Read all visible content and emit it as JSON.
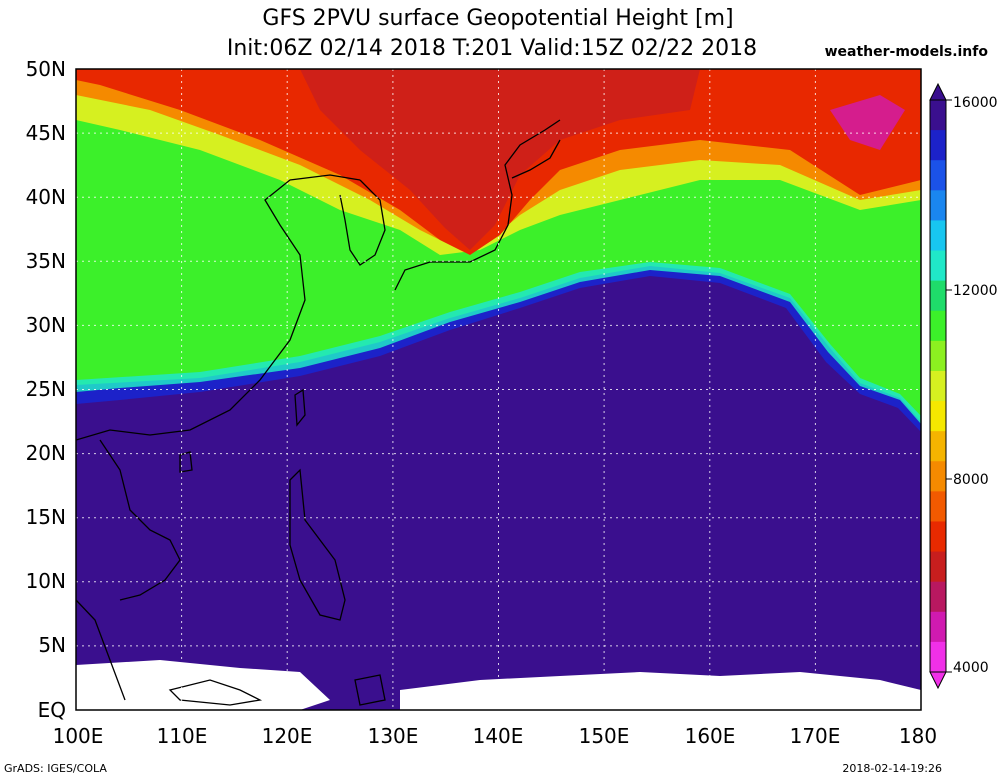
{
  "title_line1": "GFS 2PVU surface Geopotential Height [m]",
  "title_line2": "Init:06Z 02/14 2018 T:201 Valid:15Z 02/22 2018",
  "site": "weather-models.info",
  "footer_left": "GrADS: IGES/COLA",
  "footer_right": "2018-02-14-19:26",
  "map": {
    "lat_range": [
      0,
      50
    ],
    "lon_range": [
      100,
      180
    ],
    "lat_labels": [
      "50N",
      "45N",
      "40N",
      "35N",
      "30N",
      "25N",
      "20N",
      "15N",
      "10N",
      "5N",
      "EQ"
    ],
    "lon_labels": [
      "100E",
      "110E",
      "120E",
      "130E",
      "140E",
      "150E",
      "160E",
      "170E",
      "180"
    ]
  },
  "colorbar": {
    "labels": [
      "16000",
      "12000",
      "8000",
      "4000"
    ],
    "colors": [
      "#3a0f8e",
      "#1c22c9",
      "#1b52e8",
      "#1a86ef",
      "#18c6f0",
      "#20e8c8",
      "#1fdc6a",
      "#3cf02a",
      "#8cf020",
      "#d6f020",
      "#f5e800",
      "#f5b400",
      "#f58a00",
      "#f25a00",
      "#e82a00",
      "#c81e1e",
      "#b81860",
      "#d01ab0",
      "#f030e8"
    ]
  },
  "colors": {
    "deep_purple": "#3a0f8e",
    "blue_edge": "#1e2ee0",
    "cyan": "#2ce8d6",
    "green": "#3cf02a",
    "yellow": "#d8f020",
    "orange": "#f5a000",
    "red": "#e82800",
    "magenta": "#d018c0"
  }
}
